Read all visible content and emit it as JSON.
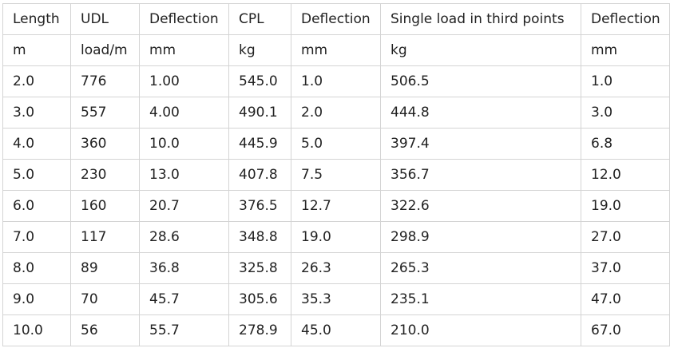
{
  "table": {
    "header": [
      "Length",
      "UDL",
      "Deflection",
      "CPL",
      "Deflection",
      "Single load in third points",
      "Deflection"
    ],
    "units": [
      "m",
      "load/m",
      "mm",
      "kg",
      "mm",
      "kg",
      "mm"
    ],
    "rows": [
      [
        "2.0",
        "776",
        "1.00",
        "545.0",
        "1.0",
        "506.5",
        "1.0"
      ],
      [
        "3.0",
        "557",
        "4.00",
        "490.1",
        "2.0",
        "444.8",
        "3.0"
      ],
      [
        "4.0",
        "360",
        "10.0",
        "445.9",
        "5.0",
        "397.4",
        "6.8"
      ],
      [
        "5.0",
        "230",
        "13.0",
        "407.8",
        "7.5",
        "356.7",
        "12.0"
      ],
      [
        "6.0",
        "160",
        "20.7",
        "376.5",
        "12.7",
        "322.6",
        "19.0"
      ],
      [
        "7.0",
        "117",
        "28.6",
        "348.8",
        "19.0",
        "298.9",
        "27.0"
      ],
      [
        "8.0",
        "89",
        "36.8",
        "325.8",
        "26.3",
        "265.3",
        "37.0"
      ],
      [
        "9.0",
        "70",
        "45.7",
        "305.6",
        "35.3",
        "235.1",
        "47.0"
      ],
      [
        "10.0",
        "56",
        "55.7",
        "278.9",
        "45.0",
        "210.0",
        "67.0"
      ]
    ]
  }
}
